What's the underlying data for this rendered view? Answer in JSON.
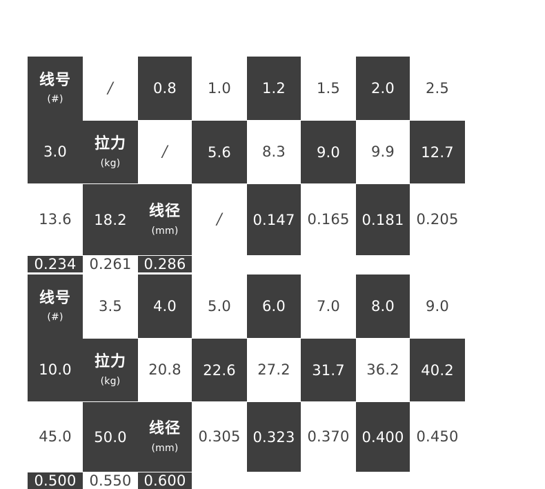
{
  "tables": [
    {
      "rows": [
        {
          "label": "线号",
          "unit": "(#)",
          "values": [
            "/",
            "0.8",
            "1.0",
            "1.2",
            "1.5",
            "2.0",
            "2.5",
            "3.0"
          ]
        },
        {
          "label": "拉力",
          "unit": "(kg)",
          "values": [
            "/",
            "5.6",
            "8.3",
            "9.0",
            "9.9",
            "12.7",
            "13.6",
            "18.2"
          ]
        },
        {
          "label": "线径",
          "unit": "(mm)",
          "values": [
            "/",
            "0.147",
            "0.165",
            "0.181",
            "0.205",
            "0.234",
            "0.261",
            "0.286"
          ]
        }
      ]
    },
    {
      "rows": [
        {
          "label": "线号",
          "unit": "(#)",
          "values": [
            "3.5",
            "4.0",
            "5.0",
            "6.0",
            "7.0",
            "8.0",
            "9.0",
            "10.0"
          ]
        },
        {
          "label": "拉力",
          "unit": "(kg)",
          "values": [
            "20.8",
            "22.6",
            "27.2",
            "31.7",
            "36.2",
            "40.2",
            "45.0",
            "50.0"
          ]
        },
        {
          "label": "线径",
          "unit": "(mm)",
          "values": [
            "0.305",
            "0.323",
            "0.370",
            "0.400",
            "0.450",
            "0.500",
            "0.550",
            "0.600"
          ]
        }
      ]
    }
  ],
  "colors": {
    "dark_cell": "#3e3e3e",
    "light_text": "#444444",
    "dark_text": "#ffffff",
    "background": "#ffffff"
  }
}
